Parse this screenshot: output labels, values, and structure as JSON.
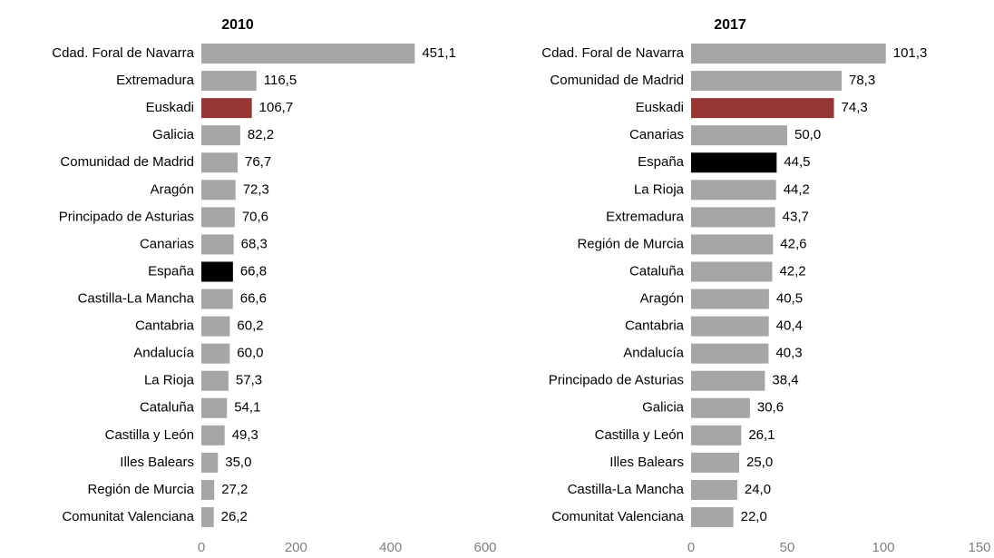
{
  "chart_data": [
    {
      "type": "barh",
      "title": "2010",
      "categories": [
        "Cdad. Foral de Navarra",
        "Extremadura",
        "Euskadi",
        "Galicia",
        "Comunidad de Madrid",
        "Aragón",
        "Principado de Asturias",
        "Canarias",
        "España",
        "Castilla-La Mancha",
        "Cantabria",
        "Andalucía",
        "La Rioja",
        "Cataluña",
        "Castilla y León",
        "Illes Balears",
        "Región de Murcia",
        "Comunitat Valenciana"
      ],
      "values": [
        451.1,
        116.5,
        106.7,
        82.2,
        76.7,
        72.3,
        70.6,
        68.3,
        66.8,
        66.6,
        60.2,
        60.0,
        57.3,
        54.1,
        49.3,
        35.0,
        27.2,
        26.2
      ],
      "value_labels": [
        "451,1",
        "116,5",
        "106,7",
        "82,2",
        "76,7",
        "72,3",
        "70,6",
        "68,3",
        "66,8",
        "66,6",
        "60,2",
        "60,0",
        "57,3",
        "54,1",
        "49,3",
        "35,0",
        "27,2",
        "26,2"
      ],
      "colors": [
        "#a6a6a6",
        "#a6a6a6",
        "#953735",
        "#a6a6a6",
        "#a6a6a6",
        "#a6a6a6",
        "#a6a6a6",
        "#a6a6a6",
        "#000000",
        "#a6a6a6",
        "#a6a6a6",
        "#a6a6a6",
        "#a6a6a6",
        "#a6a6a6",
        "#a6a6a6",
        "#a6a6a6",
        "#a6a6a6",
        "#a6a6a6"
      ],
      "xlim": [
        0,
        600
      ],
      "xticks": [
        0,
        200,
        400,
        600
      ]
    },
    {
      "type": "barh",
      "title": "2017",
      "categories": [
        "Cdad. Foral de Navarra",
        "Comunidad de Madrid",
        "Euskadi",
        "Canarias",
        "España",
        "La Rioja",
        "Extremadura",
        "Región de Murcia",
        "Cataluña",
        "Aragón",
        "Cantabria",
        "Andalucía",
        "Principado de Asturias",
        "Galicia",
        "Castilla y León",
        "Illes Balears",
        "Castilla-La Mancha",
        "Comunitat Valenciana"
      ],
      "values": [
        101.3,
        78.3,
        74.3,
        50.0,
        44.5,
        44.2,
        43.7,
        42.6,
        42.2,
        40.5,
        40.4,
        40.3,
        38.4,
        30.6,
        26.1,
        25.0,
        24.0,
        22.0
      ],
      "value_labels": [
        "101,3",
        "78,3",
        "74,3",
        "50,0",
        "44,5",
        "44,2",
        "43,7",
        "42,6",
        "42,2",
        "40,5",
        "40,4",
        "40,3",
        "38,4",
        "30,6",
        "26,1",
        "25,0",
        "24,0",
        "22,0"
      ],
      "colors": [
        "#a6a6a6",
        "#a6a6a6",
        "#953735",
        "#a6a6a6",
        "#000000",
        "#a6a6a6",
        "#a6a6a6",
        "#a6a6a6",
        "#a6a6a6",
        "#a6a6a6",
        "#a6a6a6",
        "#a6a6a6",
        "#a6a6a6",
        "#a6a6a6",
        "#a6a6a6",
        "#a6a6a6",
        "#a6a6a6",
        "#a6a6a6"
      ],
      "xlim": [
        0,
        150
      ],
      "xticks": [
        0,
        50,
        100,
        150
      ]
    }
  ]
}
